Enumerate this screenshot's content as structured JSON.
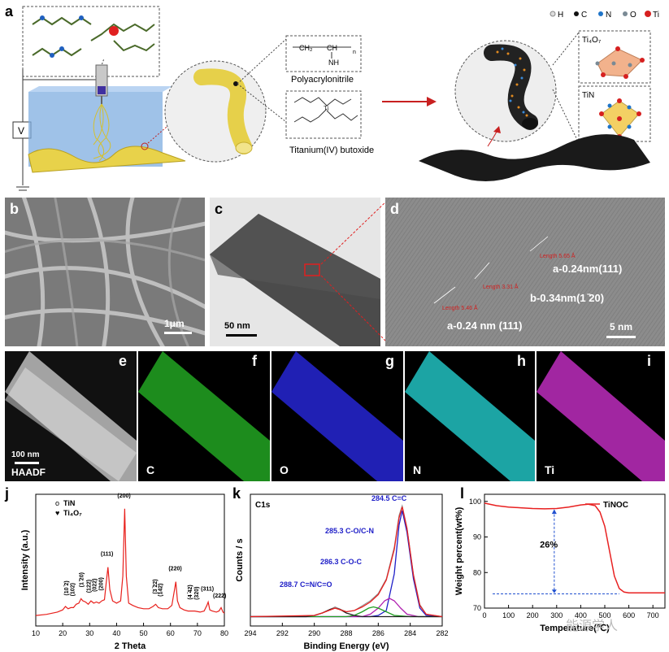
{
  "panels": {
    "a": "a",
    "b": "b",
    "c": "c",
    "d": "d",
    "e": "e",
    "f": "f",
    "g": "g",
    "h": "h",
    "i": "i",
    "j": "j",
    "k": "k",
    "l": "l"
  },
  "schematic": {
    "voltage_label": "V",
    "polymer_label": "Polyacrylonitrile",
    "ti_label": "Titanium(IV) butoxide",
    "polymer_formula": {
      "ch2": "CH₂",
      "ch": "CH",
      "nh": "NH",
      "n": "n"
    },
    "legend": [
      "H",
      "C",
      "N",
      "O",
      "Ti"
    ],
    "legend_colors": [
      "#dddddd",
      "#111111",
      "#1e74c8",
      "#7a8a95",
      "#d62020"
    ],
    "ti4o7_label": "Ti₄O₇",
    "tin_label": "TiN"
  },
  "sem": {
    "scalebar": "1μm"
  },
  "tem": {
    "scalebar": "50 nm"
  },
  "hrtem": {
    "a_label_top": "a-0.24nm(111)",
    "b_label": "b-0.34nm(1 ̄20)",
    "a_label_bottom": "a-0.24 nm (111)",
    "scalebar": "5 nm",
    "annotations": [
      "Length 5.65 Å",
      "Length 3.31 Å",
      "Length 5.46 Å"
    ]
  },
  "eds": {
    "scalebar": "100 nm",
    "labels": [
      "HAADF",
      "C",
      "O",
      "N",
      "Ti"
    ],
    "colors": [
      "#cfcfcf",
      "#22a522",
      "#2323c8",
      "#1fb6b6",
      "#b32ab3"
    ]
  },
  "chart_data": [
    {
      "type": "line",
      "panel": "j",
      "xlabel": "2 Theta",
      "ylabel": "Intensity (a.u.)",
      "xlim": [
        10,
        80
      ],
      "xticks": [
        10,
        20,
        30,
        40,
        50,
        60,
        70,
        80
      ],
      "legend": [
        {
          "symbol": "o",
          "name": "TiN"
        },
        {
          "symbol": "♥",
          "name": "Ti₄O₇"
        }
      ],
      "line_color": "#e8201c",
      "series": [
        {
          "x": [
            10,
            14,
            18,
            20,
            21,
            22,
            23,
            24,
            25,
            26,
            26.8,
            27.5,
            28.5,
            29.5,
            30.5,
            31.5,
            32.5,
            33.5,
            34.5,
            35.5,
            36.2,
            36.8,
            37.5,
            38.5,
            40,
            41.5,
            42.3,
            43,
            43.6,
            44.5,
            46,
            48,
            50,
            52,
            53.5,
            54.5,
            55.5,
            57,
            59,
            60.5,
            61.5,
            62,
            62.6,
            63.5,
            65,
            66.5,
            67.5,
            69,
            71,
            72.5,
            73.5,
            74,
            74.6,
            75.5,
            77,
            78,
            78.8,
            79.5,
            80
          ],
          "y": [
            5,
            6,
            8,
            10,
            13,
            11,
            12,
            12,
            15,
            16,
            20,
            18,
            17,
            15,
            18,
            16,
            17,
            16,
            18,
            19,
            35,
            48,
            28,
            18,
            16,
            18,
            40,
            100,
            40,
            16,
            14,
            12,
            11,
            11,
            13,
            15,
            12,
            11,
            11,
            14,
            28,
            35,
            18,
            12,
            10,
            9,
            9,
            9,
            8,
            9,
            14,
            17,
            10,
            9,
            8,
            9,
            12,
            8,
            7
          ]
        }
      ],
      "peak_labels": [
        {
          "x": 21.2,
          "label": "(10 ̄2)"
        },
        {
          "x": 23.5,
          "label": "(102)"
        },
        {
          "x": 26.8,
          "label": "(1 ̄20)"
        },
        {
          "x": 29.5,
          "label": "(122)"
        },
        {
          "x": 31.5,
          "label": "(022)"
        },
        {
          "x": 34,
          "label": "(200)"
        },
        {
          "x": 36.8,
          "label": "(111)"
        },
        {
          "x": 43,
          "label": "(200)"
        },
        {
          "x": 54,
          "label": "(3 ̄22)"
        },
        {
          "x": 56,
          "label": "(142)"
        },
        {
          "x": 62,
          "label": "(220)"
        },
        {
          "x": 67,
          "label": "(4 ̄42)"
        },
        {
          "x": 69.5,
          "label": "(320)"
        },
        {
          "x": 74,
          "label": "(311)"
        },
        {
          "x": 78.5,
          "label": "(222)"
        }
      ]
    },
    {
      "type": "line",
      "panel": "k",
      "title": "C1s",
      "xlabel": "Binding Energy (eV)",
      "ylabel": "Counts / s",
      "xlim": [
        294,
        282
      ],
      "xticks": [
        294,
        292,
        290,
        288,
        286,
        284,
        282
      ],
      "series": [
        {
          "name": "raw",
          "color": "#888888",
          "x": [
            294,
            292,
            290,
            289.5,
            288.7,
            288,
            287.5,
            287,
            286.5,
            286,
            285.5,
            285,
            284.7,
            284.5,
            284.2,
            283.8,
            283.4,
            283,
            282
          ],
          "y": [
            5,
            5,
            6,
            8,
            13,
            9,
            10,
            14,
            18,
            24,
            36,
            62,
            88,
            96,
            78,
            40,
            15,
            7,
            5
          ]
        },
        {
          "name": "C=C",
          "color": "#2020c8",
          "x": [
            294,
            286.5,
            286,
            285.5,
            285,
            284.7,
            284.5,
            284.2,
            283.8,
            283.4,
            283,
            282
          ],
          "y": [
            5,
            5,
            6,
            10,
            40,
            80,
            92,
            74,
            36,
            12,
            6,
            5
          ]
        },
        {
          "name": "C-O/C-N",
          "color": "#b020b0",
          "x": [
            294,
            287,
            286.5,
            286,
            285.6,
            285.3,
            285,
            284.6,
            284.2,
            283.5,
            282
          ],
          "y": [
            5,
            5,
            7,
            12,
            18,
            20,
            18,
            12,
            7,
            5,
            5
          ]
        },
        {
          "name": "C-O-C",
          "color": "#20a020",
          "x": [
            294,
            288,
            287.5,
            287,
            286.6,
            286.3,
            286,
            285.5,
            285,
            284,
            282
          ],
          "y": [
            5,
            5,
            6,
            9,
            12,
            13,
            12,
            9,
            6,
            5,
            5
          ]
        },
        {
          "name": "C=N/C=O",
          "color": "#202020",
          "x": [
            294,
            290.5,
            290,
            289.5,
            289,
            288.7,
            288.4,
            288,
            287.5,
            287,
            282
          ],
          "y": [
            5,
            5,
            6,
            8,
            11,
            12,
            11,
            8,
            6,
            5,
            5
          ]
        },
        {
          "name": "envelope",
          "color": "#e82020",
          "x": [
            294,
            290,
            289.5,
            288.7,
            288,
            287.5,
            287,
            286.5,
            286,
            285.5,
            285,
            284.7,
            284.5,
            284.2,
            283.8,
            283.4,
            283,
            282
          ],
          "y": [
            5,
            6,
            8,
            12,
            9,
            10,
            13,
            17,
            23,
            35,
            60,
            86,
            95,
            77,
            39,
            14,
            7,
            5
          ]
        }
      ],
      "annotations": [
        {
          "x": 284.5,
          "label": "284.5 C=C"
        },
        {
          "x": 285.3,
          "label": "285.3 C-O/C-N"
        },
        {
          "x": 286.3,
          "label": "286.3 C-O-C"
        },
        {
          "x": 288.7,
          "label": "288.7 C=N/C=O"
        }
      ]
    },
    {
      "type": "line",
      "panel": "l",
      "xlabel": "Temperature(℃)",
      "ylabel": "Weight percent(wt%)",
      "xlim": [
        0,
        750
      ],
      "ylim": [
        70,
        102
      ],
      "xticks": [
        0,
        100,
        200,
        300,
        400,
        500,
        600,
        700
      ],
      "yticks": [
        70,
        80,
        90,
        100
      ],
      "legend": [
        "TiNOC"
      ],
      "series": [
        {
          "name": "TiNOC",
          "color": "#e82020",
          "x": [
            0,
            50,
            100,
            150,
            200,
            250,
            300,
            350,
            400,
            430,
            460,
            480,
            500,
            520,
            540,
            560,
            580,
            600,
            650,
            700,
            750
          ],
          "y": [
            99.5,
            98.8,
            98.4,
            98.2,
            98.0,
            97.9,
            98.0,
            98.4,
            99.0,
            99.2,
            98.8,
            97,
            93,
            86,
            79,
            75.5,
            74.5,
            74.3,
            74.3,
            74.3,
            74.3
          ]
        }
      ],
      "annotation": "26%",
      "baseline_y": 74
    }
  ],
  "watermark": "能源学人"
}
